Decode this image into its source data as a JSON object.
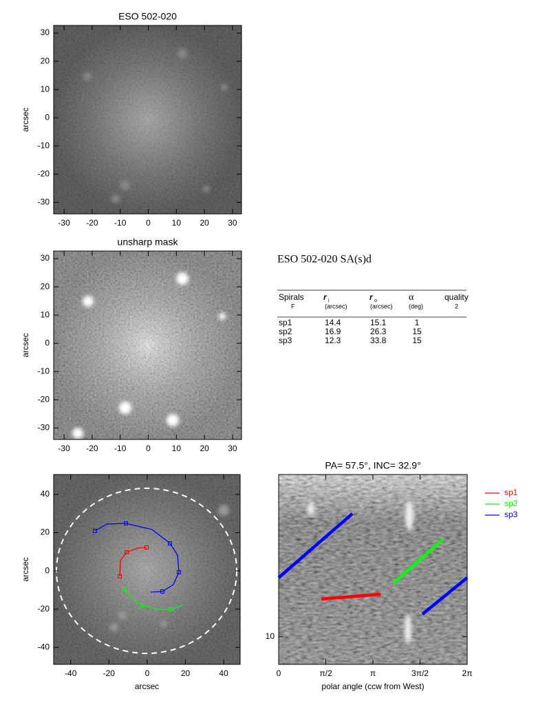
{
  "panels": [
    {
      "title": "ESO 502-020",
      "ylabel": "arcsec",
      "xlim": [
        -33.7,
        33.2
      ],
      "ylim": [
        -34.1,
        32.7
      ],
      "xticks": [
        -30,
        -20,
        -10,
        0,
        10,
        20,
        30
      ],
      "yticks": [
        -30,
        -20,
        -10,
        0,
        10,
        20,
        30
      ]
    },
    {
      "title": "unsharp mask",
      "ylabel": "arcsec",
      "xlim": [
        -33.7,
        33.2
      ],
      "ylim": [
        -34.1,
        32.7
      ],
      "xticks": [
        -30,
        -20,
        -10,
        0,
        10,
        20,
        30
      ],
      "yticks": [
        -30,
        -20,
        -10,
        0,
        10,
        20,
        30
      ]
    },
    {
      "xlabel": "arcsec",
      "ylabel": "arcsec",
      "xlim": [
        -48.9,
        48.6
      ],
      "ylim": [
        -48.9,
        50.4
      ],
      "xticks": [
        -40,
        -20,
        0,
        20,
        40
      ],
      "yticks": [
        -40,
        -20,
        0,
        20,
        40
      ]
    },
    {
      "title": "PA=  57.5°, INC=  32.9°",
      "xlabel": "polar angle (ccw from West)",
      "xlim": [
        0,
        6.2832
      ],
      "ylim": [
        7.8,
        43
      ],
      "ylog": true,
      "xticks": [
        0,
        {
          "value": 1.5708,
          "label": "π/2"
        },
        {
          "value": 3.1416,
          "label": "π"
        },
        {
          "value": 4.7124,
          "label": "3π/2"
        },
        {
          "value": 6.2832,
          "label": "2π"
        }
      ],
      "yticks": [
        10
      ],
      "series": [
        {
          "name": "sp1",
          "color": "#ff0000"
        },
        {
          "name": "sp2",
          "color": "#00ff00"
        },
        {
          "name": "sp3",
          "color": "#0000ff"
        }
      ]
    }
  ],
  "table": {
    "title": "ESO 502-020  SA(s)d",
    "header": [
      [
        "Spirals",
        "F"
      ],
      [
        "r",
        "i",
        "(arcsec)"
      ],
      [
        "r",
        "o",
        "(arcsec)"
      ],
      [
        "α",
        "(deg)"
      ],
      [
        "quality",
        "2"
      ]
    ],
    "rows": [
      [
        "sp1",
        "14.4",
        "15.1",
        "1"
      ],
      [
        "sp2",
        "16.9",
        "26.3",
        "15"
      ],
      [
        "sp3",
        "12.3",
        "33.8",
        "15"
      ]
    ]
  }
}
